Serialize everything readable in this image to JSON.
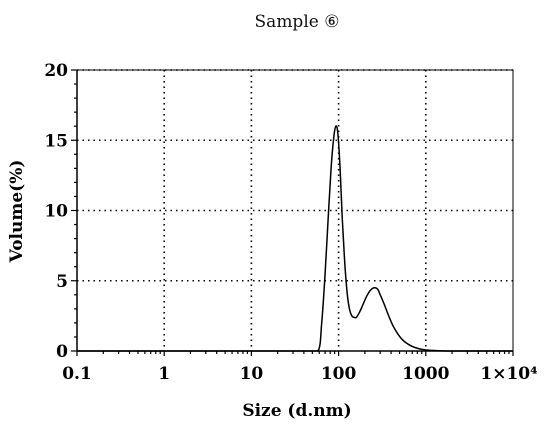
{
  "chart_data": {
    "type": "line",
    "title": "Sample ⑥",
    "xlabel": "Size (d.nm)",
    "ylabel": "Volume(%)",
    "x_scale": "log",
    "xlim": [
      0.1,
      10000
    ],
    "ylim": [
      0,
      20
    ],
    "grid": true,
    "x_ticks": [
      {
        "value": 0.1,
        "label": "0.1"
      },
      {
        "value": 1,
        "label": "1"
      },
      {
        "value": 10,
        "label": "10"
      },
      {
        "value": 100,
        "label": "100"
      },
      {
        "value": 1000,
        "label": "1000"
      },
      {
        "value": 10000,
        "label": "1×10⁴"
      }
    ],
    "y_ticks": [
      {
        "value": 0,
        "label": "0"
      },
      {
        "value": 5,
        "label": "5"
      },
      {
        "value": 10,
        "label": "10"
      },
      {
        "value": 15,
        "label": "15"
      },
      {
        "value": 20,
        "label": "20"
      }
    ],
    "series": [
      {
        "x": [
          0.1,
          1,
          10,
          40,
          58,
          64,
          70,
          76,
          82,
          88,
          93,
          98,
          104,
          110,
          117,
          125,
          133,
          142,
          150,
          160,
          175,
          190,
          210,
          230,
          255,
          280,
          300,
          330,
          370,
          420,
          480,
          550,
          640,
          750,
          900,
          1100,
          1400,
          1800,
          2300,
          10000
        ],
        "y": [
          0,
          0,
          0,
          0,
          0,
          2.0,
          5.5,
          9.5,
          13.0,
          15.2,
          16.0,
          15.5,
          13.0,
          9.5,
          6.5,
          4.2,
          3.0,
          2.5,
          2.4,
          2.4,
          2.8,
          3.3,
          3.9,
          4.3,
          4.5,
          4.4,
          4.0,
          3.4,
          2.6,
          1.8,
          1.2,
          0.75,
          0.45,
          0.25,
          0.12,
          0.05,
          0.02,
          0,
          0,
          0
        ]
      }
    ]
  }
}
